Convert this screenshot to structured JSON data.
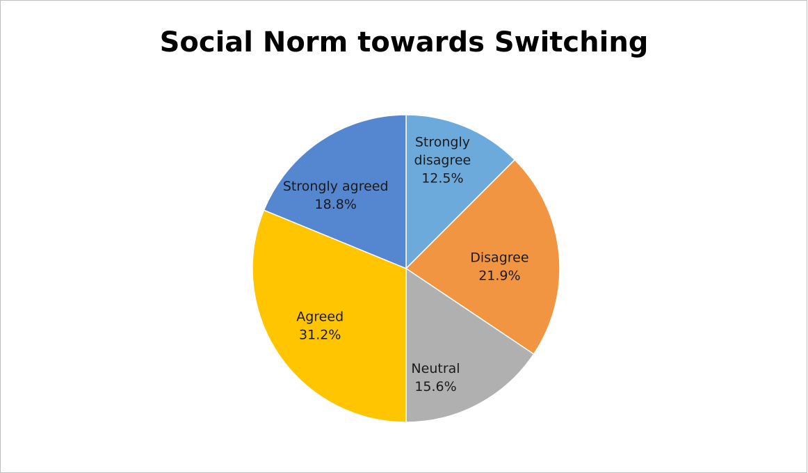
{
  "chart_data": {
    "type": "pie",
    "title": "Social Norm towards Switching",
    "start_angle_deg": 0,
    "direction": "clockwise",
    "slices": [
      {
        "label": "Strongly disagree",
        "label_lines": [
          "Strongly",
          "disagree"
        ],
        "value": 12.5,
        "value_label": "12.5%",
        "color": "#6DAADC"
      },
      {
        "label": "Disagree",
        "label_lines": [
          "Disagree"
        ],
        "value": 21.9,
        "value_label": "21.9%",
        "color": "#F29542"
      },
      {
        "label": "Neutral",
        "label_lines": [
          "Neutral"
        ],
        "value": 15.6,
        "value_label": "15.6%",
        "color": "#B0B0B0"
      },
      {
        "label": "Agreed",
        "label_lines": [
          "Agreed"
        ],
        "value": 31.2,
        "value_label": "31.2%",
        "color": "#FEC500"
      },
      {
        "label": "Strongly agreed",
        "label_lines": [
          "Strongly agreed"
        ],
        "value": 18.8,
        "value_label": "18.8%",
        "color": "#5587D0"
      }
    ],
    "legend": "none"
  }
}
